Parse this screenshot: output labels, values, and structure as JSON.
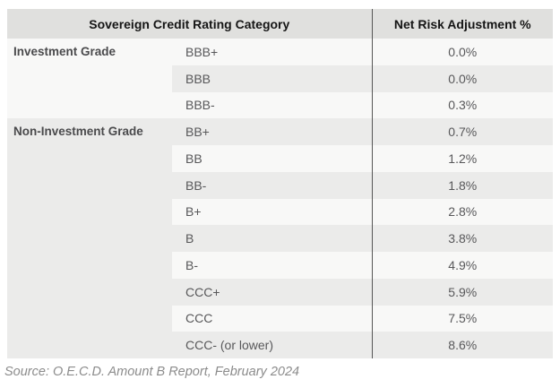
{
  "table": {
    "header": {
      "category_label": "Sovereign Credit Rating Category",
      "adjustment_label": "Net Risk Adjustment %"
    },
    "groups": [
      {
        "label": "Investment Grade",
        "rows": [
          {
            "rating": "BBB+",
            "value": "0.0%"
          },
          {
            "rating": "BBB",
            "value": "0.0%"
          },
          {
            "rating": "BBB-",
            "value": "0.3%"
          }
        ]
      },
      {
        "label": "Non-Investment Grade",
        "rows": [
          {
            "rating": "BB+",
            "value": "0.7%"
          },
          {
            "rating": "BB",
            "value": "1.2%"
          },
          {
            "rating": "BB-",
            "value": "1.8%"
          },
          {
            "rating": "B+",
            "value": "2.8%"
          },
          {
            "rating": "B",
            "value": "3.8%"
          },
          {
            "rating": "B-",
            "value": "4.9%"
          },
          {
            "rating": "CCC+",
            "value": "5.9%"
          },
          {
            "rating": "CCC",
            "value": "7.5%"
          },
          {
            "rating": "CCC- (or lower)",
            "value": "8.6%"
          }
        ]
      }
    ]
  },
  "source_note": "Source: O.E.C.D. Amount B Report, February 2024",
  "colors": {
    "header_background": "#e0e0de",
    "row_light": "#f8f8f7",
    "row_dark": "#ebebea",
    "divider_line": "#555555",
    "header_text": "#151515",
    "group_label_text": "#4a4a4c",
    "cell_text": "#58585a",
    "source_text": "#8c8c8c",
    "page_background": "#ffffff"
  },
  "chart_data": {
    "type": "table",
    "title": "",
    "columns": [
      "Sovereign Credit Rating Category",
      "Net Risk Adjustment %"
    ],
    "rows": [
      [
        "Investment Grade",
        "BBB+",
        0.0
      ],
      [
        "Investment Grade",
        "BBB",
        0.0
      ],
      [
        "Investment Grade",
        "BBB-",
        0.3
      ],
      [
        "Non-Investment Grade",
        "BB+",
        0.7
      ],
      [
        "Non-Investment Grade",
        "BB",
        1.2
      ],
      [
        "Non-Investment Grade",
        "BB-",
        1.8
      ],
      [
        "Non-Investment Grade",
        "B+",
        2.8
      ],
      [
        "Non-Investment Grade",
        "B",
        3.8
      ],
      [
        "Non-Investment Grade",
        "B-",
        4.9
      ],
      [
        "Non-Investment Grade",
        "CCC+",
        5.9
      ],
      [
        "Non-Investment Grade",
        "CCC",
        7.5
      ],
      [
        "Non-Investment Grade",
        "CCC- (or lower)",
        8.6
      ]
    ],
    "value_unit": "%",
    "source": "Source: O.E.C.D. Amount B Report, February 2024"
  }
}
